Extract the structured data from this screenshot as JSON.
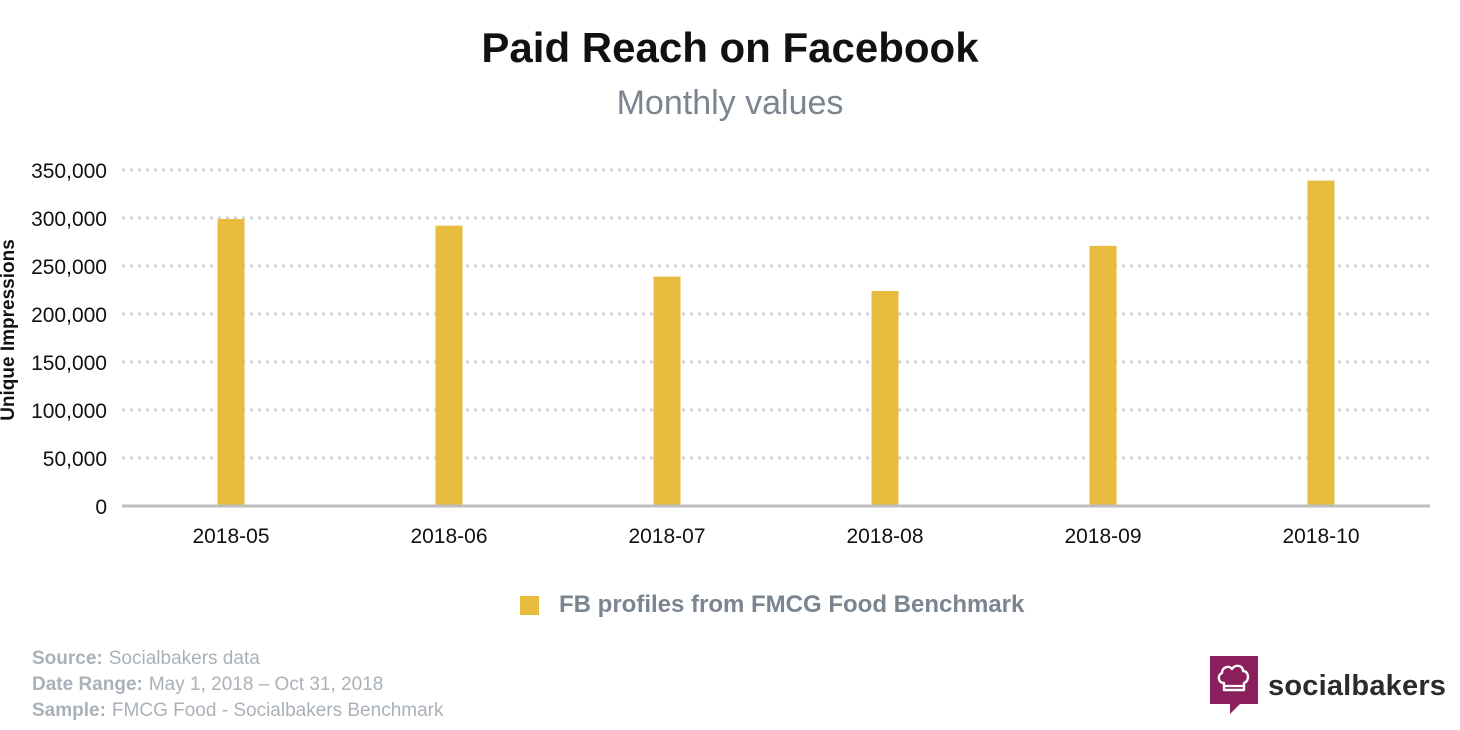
{
  "chart_data": {
    "type": "bar",
    "title": "Paid Reach on Facebook",
    "subtitle": "Monthly values",
    "xlabel": "",
    "ylabel": "Unique Impressions",
    "ylim": [
      0,
      350000
    ],
    "yticks": [
      0,
      50000,
      100000,
      150000,
      200000,
      250000,
      300000,
      350000
    ],
    "ytick_labels": [
      "0",
      "50,000",
      "100,000",
      "150,000",
      "200,000",
      "250,000",
      "300,000",
      "350,000"
    ],
    "categories": [
      "2018-05",
      "2018-06",
      "2018-07",
      "2018-08",
      "2018-09",
      "2018-10"
    ],
    "series": [
      {
        "name": "FB profiles from FMCG Food Benchmark",
        "color": "#e8bc3e",
        "values": [
          299000,
          292000,
          239000,
          224000,
          271000,
          339000
        ]
      }
    ],
    "grid": true,
    "legend_position": "bottom"
  },
  "footer": {
    "source_label": "Source:",
    "source_value": "Socialbakers data",
    "range_label": "Date Range:",
    "range_value": "May 1, 2018  – Oct 31, 2018",
    "sample_label": "Sample:",
    "sample_value": "FMCG Food - Socialbakers Benchmark"
  },
  "brand": {
    "name": "socialbakers",
    "logo_icon": "chef-hat-speech-bubble-icon",
    "logo_color": "#8a1f5c"
  },
  "colors": {
    "title": "#111111",
    "subtitle": "#7b8590",
    "grid": "#d3d3d3",
    "axis": "#bdbdbd",
    "footer": "#aab1b8"
  }
}
